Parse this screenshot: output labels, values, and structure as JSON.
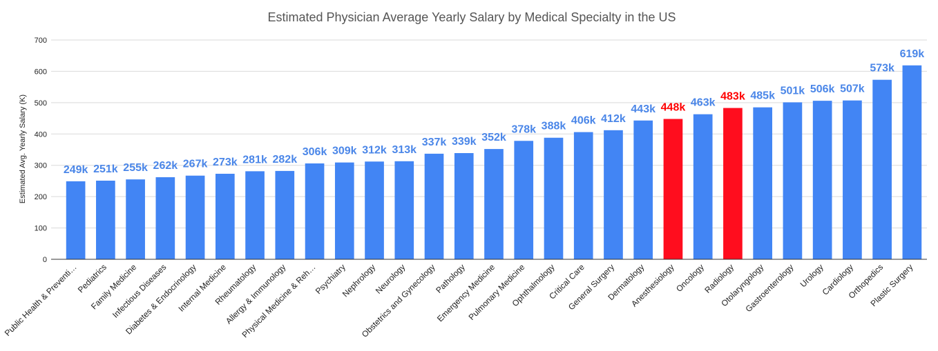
{
  "chart_data": {
    "type": "bar",
    "title": "Estimated Physician Average Yearly Salary by Medical Specialty in the US",
    "xlabel": "",
    "ylabel": "Estimated Avg. Yearly Salary (K)",
    "ylim": [
      0,
      700
    ],
    "yticks": [
      0,
      100,
      200,
      300,
      400,
      500,
      600,
      700
    ],
    "grid": true,
    "colors": {
      "default": "#4285f4",
      "highlight": "#ff0d1e",
      "default_label": "#4a86e8",
      "highlight_label": "#ff0000"
    },
    "categories": [
      "Public Health & Preventi…",
      "Pediatrics",
      "Family Medicine",
      "Infectious Diseases",
      "Diabetes & Endocrinology",
      "Internal Medicine",
      "Rheumatology",
      "Allergy & Immunology",
      "Physical Medicine & Reh…",
      "Psychiatry",
      "Nephrology",
      "Neurology",
      "Obstetrics and Gynecology",
      "Pathology",
      "Emergency Medicine",
      "Pulmonary Medicine",
      "Ophthalmology",
      "Critical Care",
      "General Surgery",
      "Dermatology",
      "Anesthesiology",
      "Oncology",
      "Radiology",
      "Otolaryngology",
      "Gastroenterology",
      "Urology",
      "Cardiology",
      "Orthopedics",
      "Plastic Surgery"
    ],
    "values": [
      249,
      251,
      255,
      262,
      267,
      273,
      281,
      282,
      306,
      309,
      312,
      313,
      337,
      339,
      352,
      378,
      388,
      406,
      412,
      443,
      448,
      463,
      483,
      485,
      501,
      506,
      507,
      573,
      619
    ],
    "data_labels": [
      "249k",
      "251k",
      "255k",
      "262k",
      "267k",
      "273k",
      "281k",
      "282k",
      "306k",
      "309k",
      "312k",
      "313k",
      "337k",
      "339k",
      "352k",
      "378k",
      "388k",
      "406k",
      "412k",
      "443k",
      "448k",
      "463k",
      "483k",
      "485k",
      "501k",
      "506k",
      "507k",
      "573k",
      "619k"
    ],
    "highlighted": [
      "Anesthesiology",
      "Radiology"
    ]
  }
}
